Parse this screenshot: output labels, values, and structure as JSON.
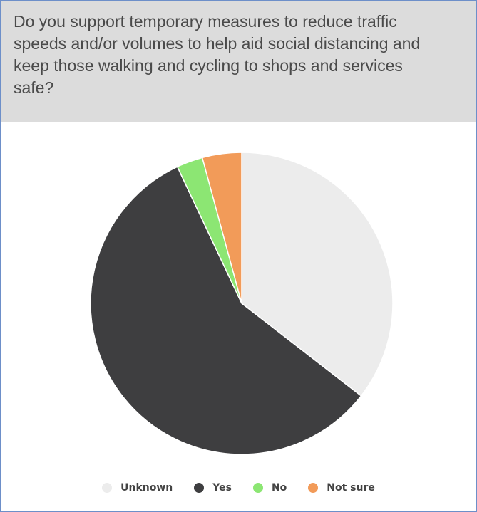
{
  "question": {
    "lines": [
      "Do you support temporary measures to reduce traffic",
      "speeds and/or volumes to help aid social distancing and",
      "keep those walking and cycling to shops and services",
      "safe?"
    ]
  },
  "chart_data": {
    "type": "pie",
    "title": "Do you support temporary measures to reduce traffic speeds and/or volumes to help aid social distancing and keep those walking and cycling to shops and services safe?",
    "legend_position": "bottom",
    "slices": [
      {
        "label": "Unknown",
        "percent": 35.5,
        "color": "#ececec"
      },
      {
        "label": "Yes",
        "percent": 57.5,
        "color": "#3e3e40"
      },
      {
        "label": "No",
        "percent": 2.8,
        "color": "#8ce673"
      },
      {
        "label": "Not sure",
        "percent": 4.2,
        "color": "#f29b59"
      }
    ]
  }
}
